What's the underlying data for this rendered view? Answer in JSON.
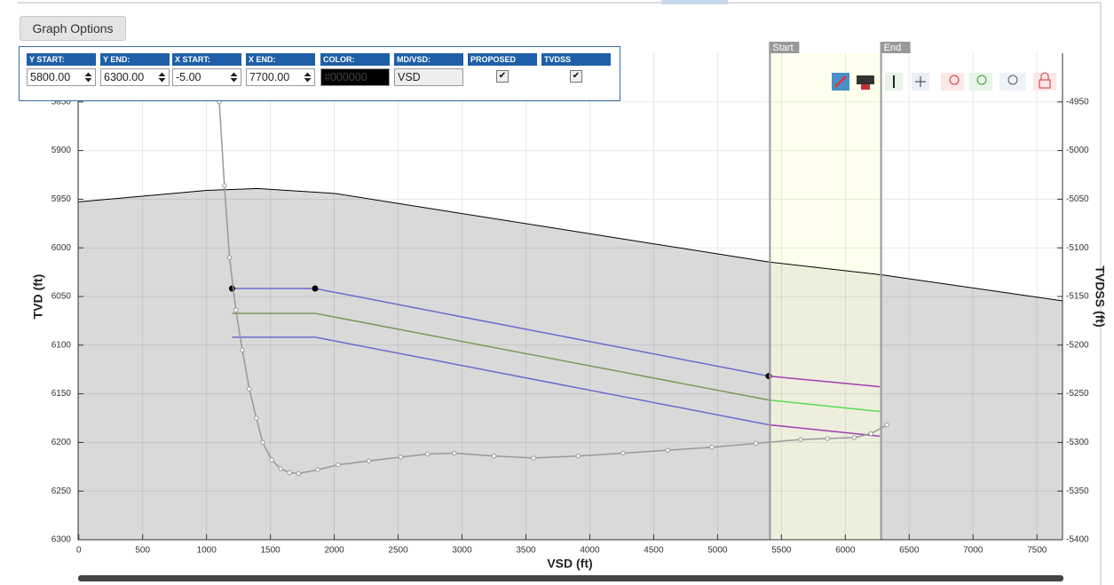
{
  "button": "Graph Options",
  "controls": [
    {
      "label": "Y START:",
      "value": "5800.00",
      "kind": "spin"
    },
    {
      "label": "Y END:",
      "value": "6300.00",
      "kind": "spin"
    },
    {
      "label": "X START:",
      "value": "-5.00",
      "kind": "spin"
    },
    {
      "label": "X END:",
      "value": "7700.00",
      "kind": "spin"
    },
    {
      "label": "COLOR:",
      "value": "#000000",
      "kind": "color"
    },
    {
      "label": "MD/VSD:",
      "value": "VSD",
      "kind": "text"
    },
    {
      "label": "PROPOSED",
      "checked": true,
      "kind": "check"
    },
    {
      "label": "TVDSS",
      "checked": true,
      "kind": "check"
    }
  ],
  "chart_data": {
    "type": "line",
    "xlabel": "VSD (ft)",
    "ylabel": "TVD (ft)",
    "y2label": "TVDSS (ft)",
    "xlim": [
      -5,
      7700
    ],
    "xticks": [
      0,
      500,
      1000,
      1500,
      2000,
      2500,
      3000,
      3500,
      4000,
      4500,
      5000,
      5500,
      6000,
      6500,
      7000,
      7500
    ],
    "ylim": [
      5800,
      6300
    ],
    "yticks": [
      5850,
      5900,
      5950,
      6000,
      6050,
      6100,
      6150,
      6200,
      6250,
      6300
    ],
    "y2lim": [
      -4900,
      -5400
    ],
    "y2ticks": [
      -4950,
      -5000,
      -5050,
      -5100,
      -5150,
      -5200,
      -5250,
      -5300,
      -5350,
      -5400
    ],
    "grid": true,
    "region": {
      "start": 5410,
      "end": 6280,
      "start_label": "Start",
      "end_label": "End",
      "color": "#ffffe0"
    },
    "series": [
      {
        "kind": "area",
        "color": "#000000",
        "fill": "#d9d9d9",
        "x": [
          0,
          1000,
          1400,
          2000,
          5400,
          6300,
          7700
        ],
        "values": [
          5952.7,
          5941,
          5939,
          5944,
          6014.5,
          6028,
          6054.5
        ]
      },
      {
        "color": "#6a6ad0",
        "marker": "dot",
        "x": [
          1200,
          1850,
          5400
        ],
        "values": [
          6041.8,
          6041.8,
          6131.8
        ]
      },
      {
        "color": "#a040b0",
        "x": [
          5400,
          6270
        ],
        "values": [
          6131.8,
          6142.7
        ]
      },
      {
        "color": "#7a9a5a",
        "x": [
          1200,
          1850,
          5400
        ],
        "values": [
          6067.3,
          6067.3,
          6156.4
        ]
      },
      {
        "color": "#55dd55",
        "x": [
          5400,
          6270
        ],
        "values": [
          6156.4,
          6168.2
        ]
      },
      {
        "color": "#6a6ad0",
        "x": [
          1200,
          1850,
          5400
        ],
        "values": [
          6091.8,
          6091.8,
          6181.8
        ]
      },
      {
        "color": "#a040b0",
        "x": [
          5400,
          6270
        ],
        "values": [
          6181.8,
          6193.6
        ]
      },
      {
        "color": "#999999",
        "marker": "circle",
        "x": [
          1060,
          1100,
          1140,
          1180,
          1230,
          1280,
          1335,
          1390,
          1440,
          1510,
          1580,
          1650,
          1720,
          1870,
          2030,
          2270,
          2520,
          2730,
          2940,
          3250,
          3560,
          3910,
          4260,
          4610,
          4955,
          5300,
          5650,
          5860,
          6070,
          6200,
          6325
        ],
        "values": [
          5780,
          5850,
          5936,
          6010,
          6064,
          6105,
          6145,
          6175,
          6200,
          6218,
          6227,
          6231,
          6232,
          6228,
          6223,
          6219,
          6215,
          6212,
          6211,
          6214,
          6216,
          6214,
          6211,
          6208,
          6205,
          6201,
          6197,
          6196,
          6195,
          6191,
          6182
        ]
      }
    ]
  }
}
